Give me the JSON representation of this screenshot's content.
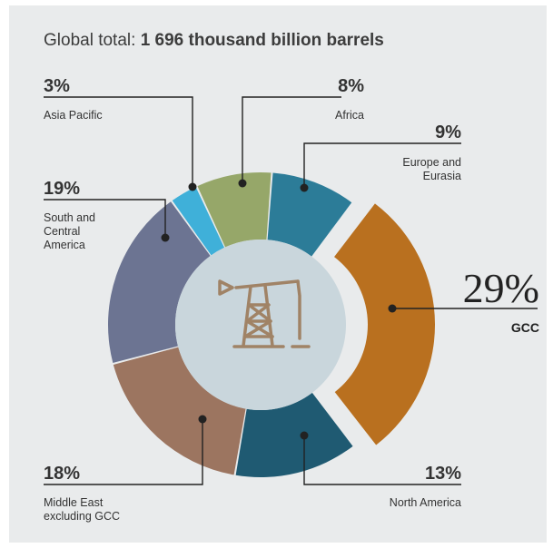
{
  "header": {
    "title_prefix": "Global total:",
    "title_value": "1 696 thousand billion barrels"
  },
  "chart_data": {
    "type": "pie",
    "donut": true,
    "total": "1 696 thousand billion barrels",
    "slices": [
      {
        "label": "GCC",
        "pct_text": "29%",
        "value": 29,
        "color": "#b9701f",
        "exploded": true
      },
      {
        "label": "North America",
        "pct_text": "13%",
        "value": 13,
        "color": "#1f5a72"
      },
      {
        "label": "Middle East excluding GCC",
        "label_lines": [
          "Middle East",
          "excluding GCC"
        ],
        "pct_text": "18%",
        "value": 18,
        "color": "#9c7560"
      },
      {
        "label": "South and Central America",
        "label_lines": [
          "South and",
          "Central",
          "America"
        ],
        "pct_text": "19%",
        "value": 19,
        "color": "#6c7492"
      },
      {
        "label": "Asia Pacific",
        "pct_text": "3%",
        "value": 3,
        "color": "#3fb0d9"
      },
      {
        "label": "Africa",
        "pct_text": "8%",
        "value": 8,
        "color": "#96a769"
      },
      {
        "label": "Europe and Eurasia",
        "label_lines": [
          "Europe and",
          "Eurasia"
        ],
        "pct_text": "9%",
        "value": 9,
        "color": "#2c7c98"
      }
    ],
    "center_icon": "oil-pump-icon",
    "colors": {
      "background": "#e9ebec",
      "center_disc": "#c9d6dc",
      "icon": "#a08366",
      "leader": "#222222"
    }
  }
}
